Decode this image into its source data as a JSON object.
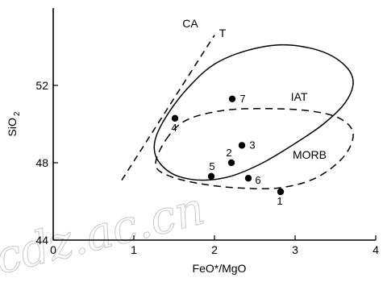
{
  "chart_data": {
    "type": "scatter",
    "title": "",
    "xlabel": "FeO*/MgO",
    "ylabel_main": "SiO",
    "ylabel_sub": "2",
    "xlim": [
      0,
      4
    ],
    "ylim": [
      44,
      56
    ],
    "x_ticks": [
      0,
      1,
      2,
      3,
      4
    ],
    "y_ticks": [
      44,
      48,
      52
    ],
    "points": [
      {
        "label": "1",
        "x": 2.82,
        "y": 46.5
      },
      {
        "label": "2",
        "x": 2.21,
        "y": 48.0
      },
      {
        "label": "3",
        "x": 2.34,
        "y": 48.9
      },
      {
        "label": "4",
        "x": 1.51,
        "y": 50.3
      },
      {
        "label": "5",
        "x": 1.96,
        "y": 47.3
      },
      {
        "label": "6",
        "x": 2.42,
        "y": 47.2
      },
      {
        "label": "7",
        "x": 2.22,
        "y": 51.3
      }
    ],
    "fields": [
      {
        "label": "IAT",
        "label_at": [
          3.05,
          51.2
        ],
        "style": "solid",
        "outline": [
          [
            1.28,
            49.4
          ],
          [
            1.45,
            50.7
          ],
          [
            1.7,
            52.0
          ],
          [
            2.0,
            53.1
          ],
          [
            2.4,
            53.8
          ],
          [
            2.85,
            54.1
          ],
          [
            3.3,
            53.8
          ],
          [
            3.6,
            53.1
          ],
          [
            3.72,
            52.2
          ],
          [
            3.62,
            51.1
          ],
          [
            3.35,
            50.0
          ],
          [
            3.0,
            49.0
          ],
          [
            2.6,
            48.0
          ],
          [
            2.2,
            47.3
          ],
          [
            1.85,
            47.1
          ],
          [
            1.55,
            47.3
          ],
          [
            1.36,
            47.8
          ],
          [
            1.26,
            48.5
          ],
          [
            1.28,
            49.4
          ]
        ]
      },
      {
        "label": "MORB",
        "label_at": [
          3.18,
          48.2
        ],
        "style": "dashed",
        "outline": [
          [
            1.4,
            49.2
          ],
          [
            1.65,
            50.2
          ],
          [
            2.1,
            50.7
          ],
          [
            2.6,
            50.8
          ],
          [
            3.15,
            50.7
          ],
          [
            3.55,
            50.3
          ],
          [
            3.72,
            49.5
          ],
          [
            3.6,
            48.3
          ],
          [
            3.25,
            47.2
          ],
          [
            2.8,
            46.7
          ],
          [
            2.3,
            46.7
          ],
          [
            1.85,
            46.9
          ],
          [
            1.45,
            47.3
          ],
          [
            1.27,
            47.9
          ],
          [
            1.4,
            49.2
          ]
        ]
      }
    ],
    "boundary_lines": [
      {
        "label": "CA",
        "label_at": [
          1.7,
          55.0
        ],
        "style": "dashed",
        "points": [
          [
            0.85,
            47.1
          ],
          [
            2.0,
            54.6
          ]
        ]
      },
      {
        "label": "T",
        "label_at": [
          2.1,
          54.5
        ],
        "style": "dashed",
        "points": [
          [
            0.85,
            47.1
          ],
          [
            2.0,
            54.6
          ]
        ]
      }
    ],
    "grid": false,
    "legend": "none"
  },
  "watermark": "cdz.ac.cn"
}
